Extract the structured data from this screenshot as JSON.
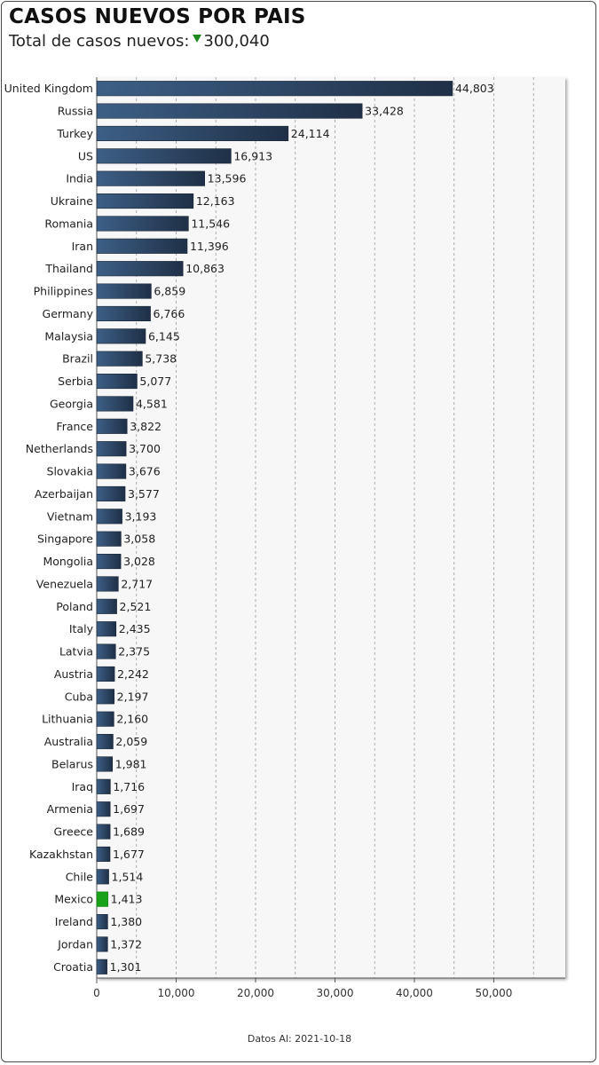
{
  "header": {
    "title": "CASOS NUEVOS POR PAIS",
    "subtitle_label": "Total de casos nuevos:",
    "subtitle_value": "300,040"
  },
  "footer": {
    "date_text": "Datos Al: 2021-10-18"
  },
  "colors": {
    "bar": "#2f4a6b",
    "highlight": "#1aa31a",
    "trend_icon": "#1e8a1e"
  },
  "chart_data": {
    "type": "bar",
    "orientation": "horizontal",
    "title": "CASOS NUEVOS POR PAIS",
    "xlabel": "",
    "ylabel": "",
    "xlim": [
      0,
      59000
    ],
    "xticks": [
      0,
      10000,
      20000,
      30000,
      40000,
      50000
    ],
    "xtick_labels": [
      "0",
      "10,000",
      "20,000",
      "30,000",
      "40,000",
      "50,000"
    ],
    "grid": "vertical dashed",
    "highlight_category": "Mexico",
    "categories": [
      "United Kingdom",
      "Russia",
      "Turkey",
      "US",
      "India",
      "Ukraine",
      "Romania",
      "Iran",
      "Thailand",
      "Philippines",
      "Germany",
      "Malaysia",
      "Brazil",
      "Serbia",
      "Georgia",
      "France",
      "Netherlands",
      "Slovakia",
      "Azerbaijan",
      "Vietnam",
      "Singapore",
      "Mongolia",
      "Venezuela",
      "Poland",
      "Italy",
      "Latvia",
      "Austria",
      "Cuba",
      "Lithuania",
      "Australia",
      "Belarus",
      "Iraq",
      "Armenia",
      "Greece",
      "Kazakhstan",
      "Chile",
      "Mexico",
      "Ireland",
      "Jordan",
      "Croatia"
    ],
    "values": [
      44803,
      33428,
      24114,
      16913,
      13596,
      12163,
      11546,
      11396,
      10863,
      6859,
      6766,
      6145,
      5738,
      5077,
      4581,
      3822,
      3700,
      3676,
      3577,
      3193,
      3058,
      3028,
      2717,
      2521,
      2435,
      2375,
      2242,
      2197,
      2160,
      2059,
      1981,
      1716,
      1697,
      1689,
      1677,
      1514,
      1413,
      1380,
      1372,
      1301
    ],
    "value_labels": [
      "44,803",
      "33,428",
      "24,114",
      "16,913",
      "13,596",
      "12,163",
      "11,546",
      "11,396",
      "10,863",
      "6,859",
      "6,766",
      "6,145",
      "5,738",
      "5,077",
      "4,581",
      "3,822",
      "3,700",
      "3,676",
      "3,577",
      "3,193",
      "3,058",
      "3,028",
      "2,717",
      "2,521",
      "2,435",
      "2,375",
      "2,242",
      "2,197",
      "2,160",
      "2,059",
      "1,981",
      "1,716",
      "1,697",
      "1,689",
      "1,677",
      "1,514",
      "1,413",
      "1,380",
      "1,372",
      "1,301"
    ]
  }
}
